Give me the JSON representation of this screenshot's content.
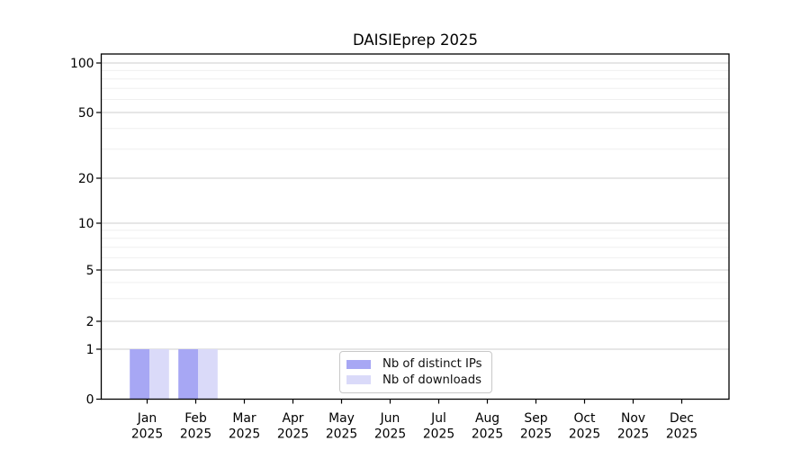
{
  "title": "DAISIEprep 2025",
  "chart_data": {
    "type": "bar",
    "categories": [
      "Jan",
      "Feb",
      "Mar",
      "Apr",
      "May",
      "Jun",
      "Jul",
      "Aug",
      "Sep",
      "Oct",
      "Nov",
      "Dec"
    ],
    "x_tick_second_line": "2025",
    "series": [
      {
        "name": "Nb of distinct IPs",
        "color": "#a7a7f4",
        "values": [
          1,
          1,
          0,
          0,
          0,
          0,
          0,
          0,
          0,
          0,
          0,
          0
        ]
      },
      {
        "name": "Nb of downloads",
        "color": "#dadaf9",
        "values": [
          1,
          1,
          0,
          0,
          0,
          0,
          0,
          0,
          0,
          0,
          0,
          0
        ]
      }
    ],
    "title": "DAISIEprep 2025",
    "xlabel": "",
    "ylabel": "",
    "yticks": [
      0,
      1,
      2,
      5,
      10,
      20,
      50,
      100
    ],
    "y_minor_ticks": [
      3,
      4,
      6,
      7,
      8,
      9,
      30,
      40,
      60,
      70,
      80,
      90
    ],
    "ylim": [
      0,
      116
    ],
    "y_scale": "symlog (linear 0-1, log 1-100)",
    "grid": "horizontal major and minor gridlines",
    "legend_position": "inside bottom center",
    "colors": {
      "frame": "#000000",
      "grid_major": "#cdcdcd",
      "grid_minor": "#efefef",
      "background": "#ffffff"
    }
  }
}
